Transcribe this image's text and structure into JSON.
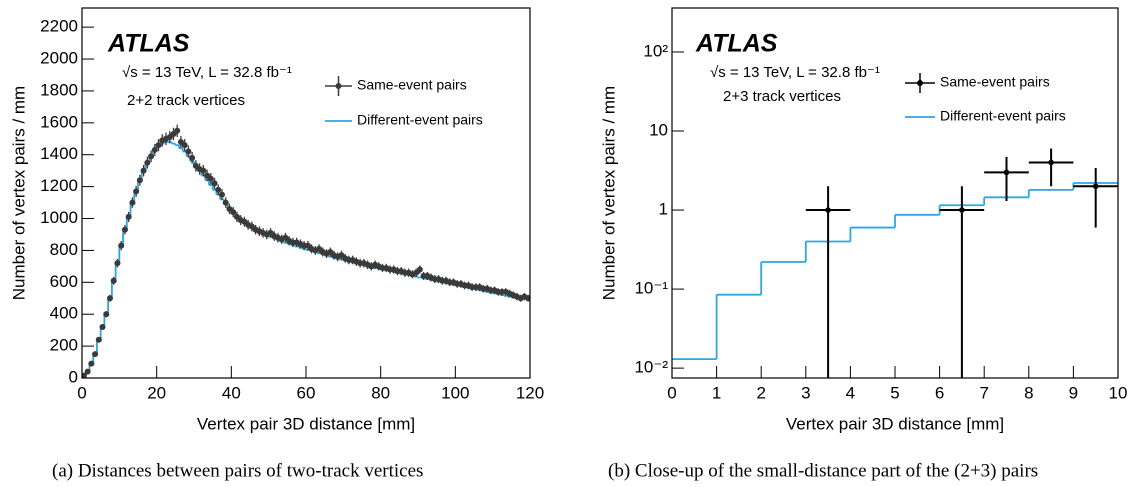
{
  "chart_data": [
    {
      "type": "histogram",
      "xlabel": "Vertex pair 3D distance [mm]",
      "ylabel": "Number of vertex pairs / mm",
      "annotations": [
        "ATLAS",
        "√s = 13 TeV, L = 32.8 fb⁻¹",
        "2+2 track vertices"
      ],
      "caption": "(a)    Distances between pairs of two-track vertices",
      "xlim": [
        0,
        120
      ],
      "ylim": [
        0,
        2320
      ],
      "log_y": false,
      "xticks": [
        0,
        20,
        40,
        60,
        80,
        100,
        120
      ],
      "yticks": [
        0,
        200,
        400,
        600,
        800,
        1000,
        1200,
        1400,
        1600,
        1800,
        2000,
        2200
      ],
      "bins": [
        0,
        1,
        2,
        3,
        4,
        5,
        6,
        7,
        8,
        9,
        10,
        11,
        12,
        13,
        14,
        15,
        16,
        17,
        18,
        19,
        20,
        21,
        22,
        23,
        24,
        25,
        26,
        27,
        28,
        29,
        30,
        31,
        32,
        33,
        34,
        35,
        36,
        37,
        38,
        39,
        40,
        41,
        42,
        43,
        44,
        45,
        46,
        47,
        48,
        49,
        50,
        51,
        52,
        53,
        54,
        55,
        56,
        57,
        58,
        59,
        60,
        61,
        62,
        63,
        64,
        65,
        66,
        67,
        68,
        69,
        70,
        71,
        72,
        73,
        74,
        75,
        76,
        77,
        78,
        79,
        80,
        81,
        82,
        83,
        84,
        85,
        86,
        87,
        88,
        89,
        90,
        91,
        92,
        93,
        94,
        95,
        96,
        97,
        98,
        99,
        100,
        101,
        102,
        103,
        104,
        105,
        106,
        107,
        108,
        109,
        110,
        111,
        112,
        113,
        114,
        115,
        116,
        117,
        118,
        119,
        120
      ],
      "series": [
        {
          "name": "Different-event pairs",
          "color": "#2ea6df",
          "values": [
            10,
            35,
            85,
            145,
            240,
            330,
            410,
            510,
            620,
            730,
            830,
            920,
            1010,
            1090,
            1170,
            1240,
            1300,
            1350,
            1390,
            1420,
            1450,
            1470,
            1480,
            1480,
            1470,
            1460,
            1440,
            1420,
            1390,
            1360,
            1330,
            1300,
            1270,
            1240,
            1210,
            1180,
            1150,
            1120,
            1090,
            1060,
            1040,
            1020,
            1000,
            980,
            960,
            950,
            935,
            920,
            905,
            895,
            885,
            875,
            865,
            855,
            848,
            840,
            832,
            825,
            818,
            810,
            803,
            796,
            789,
            782,
            775,
            768,
            761,
            754,
            748,
            742,
            736,
            730,
            724,
            718,
            712,
            706,
            700,
            695,
            690,
            685,
            680,
            675,
            670,
            665,
            660,
            655,
            650,
            645,
            640,
            635,
            630,
            625,
            620,
            615,
            610,
            605,
            600,
            595,
            590,
            585,
            580,
            575,
            570,
            565,
            560,
            555,
            550,
            545,
            540,
            535,
            530,
            525,
            520,
            515,
            510,
            505,
            500,
            500,
            500,
            500
          ]
        },
        {
          "name": "Same-event pairs",
          "color": "#3a3a3a",
          "values": [
            15,
            40,
            90,
            150,
            240,
            320,
            400,
            500,
            610,
            720,
            830,
            930,
            1010,
            1100,
            1170,
            1240,
            1300,
            1350,
            1390,
            1430,
            1460,
            1490,
            1500,
            1510,
            1530,
            1550,
            1480,
            1460,
            1420,
            1380,
            1330,
            1310,
            1300,
            1270,
            1250,
            1220,
            1180,
            1150,
            1100,
            1060,
            1040,
            1010,
            990,
            980,
            960,
            950,
            930,
            920,
            910,
            900,
            910,
            890,
            880,
            870,
            880,
            860,
            850,
            850,
            840,
            830,
            830,
            810,
            800,
            810,
            790,
            780,
            790,
            770,
            760,
            770,
            750,
            740,
            740,
            730,
            720,
            720,
            710,
            700,
            710,
            700,
            690,
            690,
            680,
            680,
            670,
            670,
            660,
            660,
            650,
            660,
            680,
            640,
            640,
            630,
            620,
            620,
            610,
            610,
            600,
            600,
            590,
            590,
            580,
            580,
            570,
            570,
            570,
            560,
            560,
            550,
            550,
            540,
            540,
            540,
            530,
            520,
            510,
            500,
            510,
            500
          ],
          "errors": [
            4,
            6,
            9,
            12,
            15,
            18,
            20,
            22,
            25,
            27,
            29,
            30,
            32,
            33,
            34,
            35,
            36,
            37,
            37,
            38,
            38,
            39,
            39,
            39,
            39,
            39,
            38,
            38,
            38,
            37,
            36,
            36,
            36,
            36,
            35,
            35,
            34,
            34,
            33,
            33,
            32,
            32,
            31,
            31,
            31,
            31,
            30,
            30,
            30,
            30,
            30,
            30,
            30,
            29,
            30,
            29,
            29,
            29,
            29,
            29,
            29,
            28,
            28,
            28,
            28,
            28,
            28,
            28,
            28,
            28,
            27,
            27,
            27,
            27,
            27,
            27,
            27,
            26,
            27,
            26,
            26,
            26,
            26,
            26,
            26,
            26,
            26,
            26,
            25,
            26,
            26,
            25,
            25,
            25,
            25,
            25,
            25,
            25,
            24,
            24,
            24,
            24,
            24,
            24,
            24,
            24,
            24,
            24,
            24,
            23,
            23,
            23,
            23,
            23,
            23,
            23,
            23,
            22,
            23,
            22
          ]
        }
      ]
    },
    {
      "type": "histogram",
      "xlabel": "Vertex pair 3D distance [mm]",
      "ylabel": "Number of vertex pairs / mm",
      "annotations": [
        "ATLAS",
        "√s = 13 TeV, L = 32.8 fb⁻¹",
        "2+3 track vertices"
      ],
      "caption": "(b)  Close-up of the small-distance part of the (2+3) pairs",
      "xlim": [
        0,
        10
      ],
      "ylim": [
        0.0075,
        360
      ],
      "log_y": true,
      "xticks": [
        0,
        1,
        2,
        3,
        4,
        5,
        6,
        7,
        8,
        9,
        10
      ],
      "yticks": [
        {
          "value": 0.01,
          "label": "10⁻²"
        },
        {
          "value": 0.1,
          "label": "10⁻¹"
        },
        1,
        10,
        {
          "value": 100,
          "label": "10²"
        }
      ],
      "bins": [
        0,
        1,
        2,
        3,
        4,
        5,
        6,
        7,
        8,
        9,
        10
      ],
      "series": [
        {
          "name": "Different-event pairs",
          "color": "#2ea6df",
          "values": [
            0.013,
            0.085,
            0.22,
            0.4,
            0.6,
            0.87,
            1.15,
            1.45,
            1.8,
            2.2
          ]
        },
        {
          "name": "Same-event pairs",
          "color": "#000000",
          "x": [
            3.5,
            6.5,
            7.5,
            8.5,
            9.5
          ],
          "values": [
            1,
            1,
            3,
            4,
            2
          ],
          "errors": [
            1,
            1,
            1.7,
            2,
            1.4
          ]
        }
      ]
    }
  ]
}
